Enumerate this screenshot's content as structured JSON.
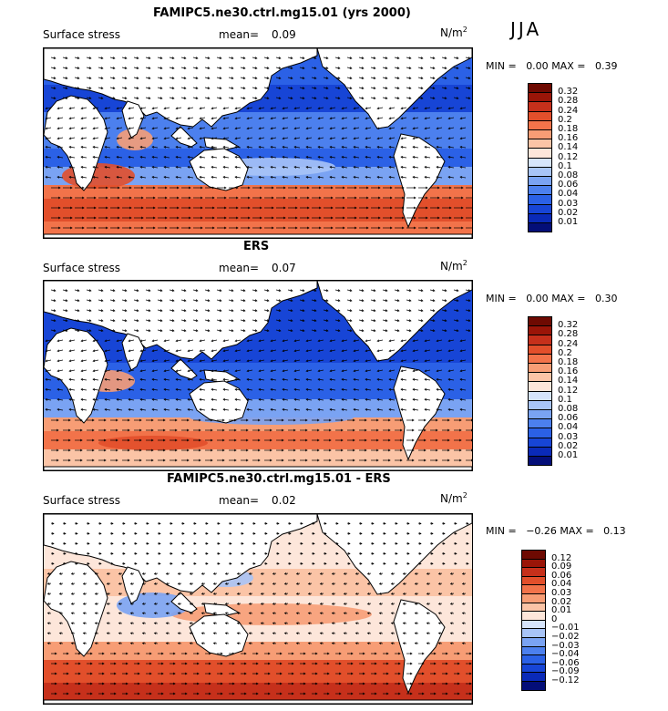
{
  "season": "JJA",
  "units": "N/m",
  "units_exp": "2",
  "panels": [
    {
      "title": "FAMIPC5.ne30.ctrl.mg15.01 (yrs 2000)",
      "variable": "Surface stress",
      "mean_label": "mean=",
      "mean_value": "0.09",
      "min_label": "MIN =",
      "min_value": "0.00",
      "max_label": "MAX =",
      "max_value": "0.39"
    },
    {
      "title": "ERS",
      "variable": "Surface stress",
      "mean_label": "mean=",
      "mean_value": "0.07",
      "min_label": "MIN =",
      "min_value": "0.00",
      "max_label": "MAX =",
      "max_value": "0.30"
    },
    {
      "title": "FAMIPC5.ne30.ctrl.mg15.01 - ERS",
      "variable": "Surface stress",
      "mean_label": "mean=",
      "mean_value": "0.02",
      "min_label": "MIN =",
      "min_value": "−0.26",
      "max_label": "MAX =",
      "max_value": "0.13"
    }
  ],
  "chart_data": [
    {
      "type": "heatmap",
      "title": "FAMIPC5.ne30.ctrl.mg15.01 (yrs 2000)",
      "variable": "Surface stress (N/m2) with wind stress vectors",
      "mean": 0.09,
      "min": 0.0,
      "max": 0.39,
      "colorbar_levels": [
        "0.01",
        "0.02",
        "0.03",
        "0.04",
        "0.06",
        "0.08",
        "0.1",
        "0.12",
        "0.14",
        "0.16",
        "0.18",
        "0.2",
        "0.24",
        "0.28",
        "0.32"
      ],
      "colorbar_colors": [
        "#040e78",
        "#0a2ab8",
        "#1745d6",
        "#2b61e6",
        "#4c80ee",
        "#7aa3f3",
        "#a8c4f7",
        "#d6e4fb",
        "#fde6da",
        "#fbc4a6",
        "#f79d75",
        "#f2734a",
        "#e24f2b",
        "#c6301b",
        "#9a1508",
        "#6e0a02"
      ]
    },
    {
      "type": "heatmap",
      "title": "ERS",
      "variable": "Surface stress (N/m2) with wind stress vectors",
      "mean": 0.07,
      "min": 0.0,
      "max": 0.3,
      "colorbar_levels": [
        "0.01",
        "0.02",
        "0.03",
        "0.04",
        "0.06",
        "0.08",
        "0.1",
        "0.12",
        "0.14",
        "0.16",
        "0.18",
        "0.2",
        "0.24",
        "0.28",
        "0.32"
      ],
      "colorbar_colors": [
        "#040e78",
        "#0a2ab8",
        "#1745d6",
        "#2b61e6",
        "#4c80ee",
        "#7aa3f3",
        "#a8c4f7",
        "#d6e4fb",
        "#fde6da",
        "#fbc4a6",
        "#f79d75",
        "#f2734a",
        "#e24f2b",
        "#c6301b",
        "#9a1508",
        "#6e0a02"
      ]
    },
    {
      "type": "heatmap",
      "title": "FAMIPC5.ne30.ctrl.mg15.01 - ERS",
      "variable": "Surface stress difference (N/m2) with wind stress vectors",
      "mean": 0.02,
      "min": -0.26,
      "max": 0.13,
      "colorbar_levels": [
        "−0.12",
        "−0.09",
        "−0.06",
        "−0.04",
        "−0.03",
        "−0.02",
        "−0.01",
        "0",
        "0.01",
        "0.02",
        "0.03",
        "0.04",
        "0.06",
        "0.09",
        "0.12"
      ],
      "colorbar_colors": [
        "#040e78",
        "#0a2ab8",
        "#1745d6",
        "#2b61e6",
        "#4c80ee",
        "#7aa3f3",
        "#a8c4f7",
        "#d6e4fb",
        "#fde6da",
        "#fbc4a6",
        "#f79d75",
        "#f2734a",
        "#e24f2b",
        "#c6301b",
        "#9a1508",
        "#6e0a02"
      ]
    }
  ]
}
